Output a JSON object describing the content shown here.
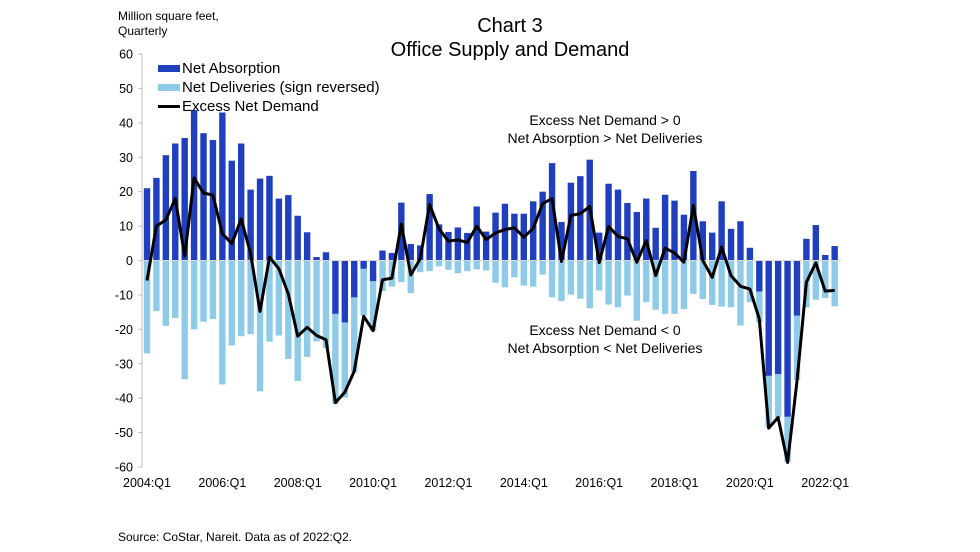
{
  "colors": {
    "absorption": "#1f3fbf",
    "deliveries": "#8ecbe9",
    "excess": "#000000",
    "axis": "#bfbfbf"
  },
  "chart_data": {
    "type": "bar",
    "title": "Chart 3",
    "subtitle": "Office Supply and Demand",
    "ylabel": "Million square feet, Quarterly",
    "xlabel": "",
    "ylim": [
      -60,
      60
    ],
    "yticks": [
      60,
      50,
      40,
      30,
      20,
      10,
      0,
      -10,
      -20,
      -30,
      -40,
      -50,
      -60
    ],
    "xtick_labels": [
      "2004:Q1",
      "2006:Q1",
      "2008:Q1",
      "2010:Q1",
      "2012:Q1",
      "2014:Q1",
      "2016:Q1",
      "2018:Q1",
      "2020:Q1",
      "2022:Q1"
    ],
    "xtick_every": 8,
    "start_period": "2004:Q1",
    "end_period": "2022:Q2",
    "grid": false,
    "legend_position": "top-left",
    "legend": [
      "Net Absorption",
      "Net Deliveries (sign reversed)",
      "Excess Net Demand"
    ],
    "annotations": [
      [
        "Excess Net Demand  > 0",
        "Net Absorption > Net Deliveries"
      ],
      [
        "Excess Net Demand  < 0",
        "Net Absorption  < Net Deliveries"
      ]
    ],
    "series": [
      {
        "name": "Net Absorption",
        "type": "bar",
        "values": [
          21.0,
          24.0,
          30.6,
          34.0,
          35.6,
          43.7,
          37.0,
          35.0,
          43.0,
          29.0,
          34.0,
          20.6,
          23.8,
          24.6,
          18.0,
          19.0,
          13.0,
          8.2,
          1.0,
          2.4,
          -15.5,
          -18.0,
          -10.7,
          -2.4,
          -6.0,
          2.9,
          2.2,
          16.8,
          4.8,
          4.4,
          19.3,
          10.5,
          8.3,
          9.6,
          8.0,
          15.7,
          8.4,
          13.9,
          16.5,
          13.6,
          13.6,
          17.2,
          20.0,
          28.3,
          11.2,
          22.6,
          24.5,
          29.3,
          8.1,
          22.3,
          20.6,
          16.7,
          14.1,
          18.0,
          9.5,
          19.1,
          17.4,
          13.3,
          26.0,
          11.4,
          8.1,
          17.2,
          9.2,
          11.4,
          3.7,
          -9.0,
          -33.5,
          -33.0,
          -45.4,
          -16.0,
          6.3,
          10.3,
          1.6,
          4.2
        ]
      },
      {
        "name": "Net Deliveries (sign reversed)",
        "type": "bar",
        "values": [
          -27.0,
          -14.7,
          -19.0,
          -16.7,
          -34.5,
          -20.0,
          -17.8,
          -17.0,
          -36.0,
          -24.7,
          -22.0,
          -21.4,
          -38.0,
          -23.6,
          -21.8,
          -28.6,
          -35.0,
          -28.0,
          -23.5,
          -25.5,
          -26.2,
          -21.8,
          -21.8,
          -13.6,
          -14.4,
          -8.9,
          -7.6,
          -6.3,
          -9.5,
          -3.4,
          -3.1,
          -1.7,
          -2.7,
          -3.7,
          -3.1,
          -2.6,
          -2.9,
          -6.5,
          -7.8,
          -4.9,
          -7.3,
          -7.6,
          -4.1,
          -10.7,
          -11.8,
          -9.9,
          -11.1,
          -13.9,
          -8.7,
          -12.8,
          -13.6,
          -10.2,
          -17.5,
          -12.1,
          -14.3,
          -15.5,
          -15.5,
          -14.1,
          -9.7,
          -11.2,
          -12.9,
          -13.4,
          -13.6,
          -18.9,
          -12.1,
          -9.0,
          -15.0,
          -12.6,
          -13.1,
          -18.7,
          -13.6,
          -11.4,
          -10.9,
          -13.3
        ]
      },
      {
        "name": "Excess Net Demand",
        "type": "line",
        "values": [
          -5.8,
          10.0,
          11.8,
          18.0,
          1.3,
          24.0,
          19.6,
          19.0,
          7.8,
          4.9,
          12.1,
          2.0,
          -14.8,
          1.0,
          -2.4,
          -9.7,
          -22.0,
          -19.4,
          -21.8,
          -23.0,
          -41.3,
          -38.3,
          -32.2,
          -16.2,
          -20.4,
          -5.6,
          -5.1,
          10.6,
          -4.2,
          0.5,
          16.3,
          9.2,
          5.6,
          6.0,
          5.2,
          10.0,
          6.1,
          8.0,
          9.0,
          9.5,
          6.8,
          9.3,
          16.5,
          18.0,
          -0.3,
          13.1,
          13.6,
          15.7,
          -0.6,
          9.9,
          7.0,
          6.3,
          -0.5,
          5.8,
          -4.4,
          3.6,
          2.2,
          -0.5,
          16.0,
          0.0,
          -4.9,
          3.9,
          -4.4,
          -7.5,
          -8.3,
          -17.0,
          -48.7,
          -45.6,
          -58.7,
          -35.0,
          -6.3,
          -0.7,
          -8.9,
          -8.7
        ]
      }
    ]
  },
  "source": "Source: CoStar, Nareit. Data as of 2022:Q2."
}
